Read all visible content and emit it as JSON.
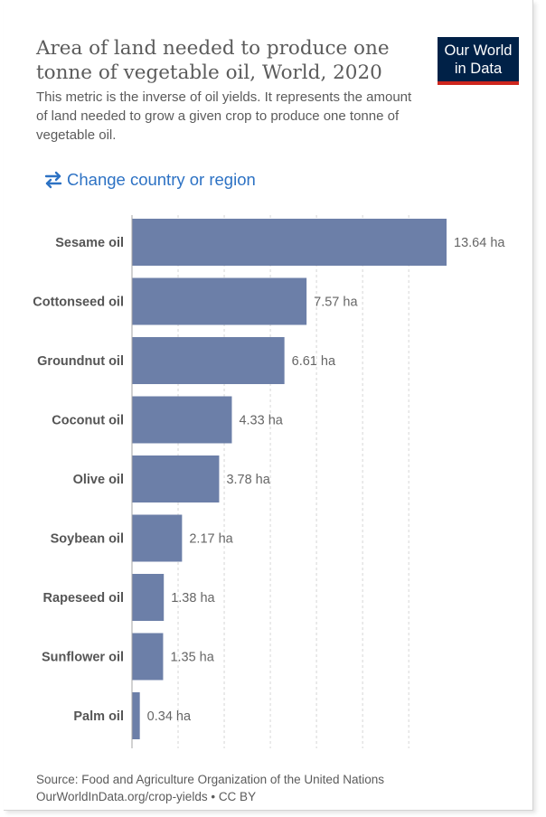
{
  "header": {
    "title": "Area of land needed to produce one tonne of vegetable oil, World, 2020",
    "subtitle": "This metric is the inverse of oil yields. It represents the amount of land needed to grow a given crop to produce one tonne of vegetable oil.",
    "logo_line1": "Our World",
    "logo_line2": "in Data"
  },
  "controls": {
    "change_region_label": "Change country or region"
  },
  "footer": {
    "source": "Source: Food and Agriculture Organization of the United Nations",
    "link": "OurWorldInData.org/crop-yields",
    "license": "CC BY"
  },
  "colors": {
    "bar": "#6c7fa8",
    "grid": "#d6d6d6",
    "axis": "#a6a6a6",
    "accent_blue": "#2d72c4",
    "logo_bg": "#002147",
    "logo_stripe": "#ce261e"
  },
  "chart_data": {
    "type": "bar",
    "orientation": "horizontal",
    "categories": [
      "Sesame oil",
      "Cottonseed oil",
      "Groundnut oil",
      "Coconut oil",
      "Olive oil",
      "Soybean oil",
      "Rapeseed oil",
      "Sunflower oil",
      "Palm oil"
    ],
    "values": [
      13.64,
      7.57,
      6.61,
      4.33,
      3.78,
      2.17,
      1.38,
      1.35,
      0.34
    ],
    "value_labels": [
      "13.64 ha",
      "7.57 ha",
      "6.61 ha",
      "4.33 ha",
      "3.78 ha",
      "2.17 ha",
      "1.38 ha",
      "1.35 ha",
      "0.34 ha"
    ],
    "unit": "ha",
    "xlim": [
      0,
      13.64
    ],
    "grid": true,
    "grid_step": 2
  }
}
